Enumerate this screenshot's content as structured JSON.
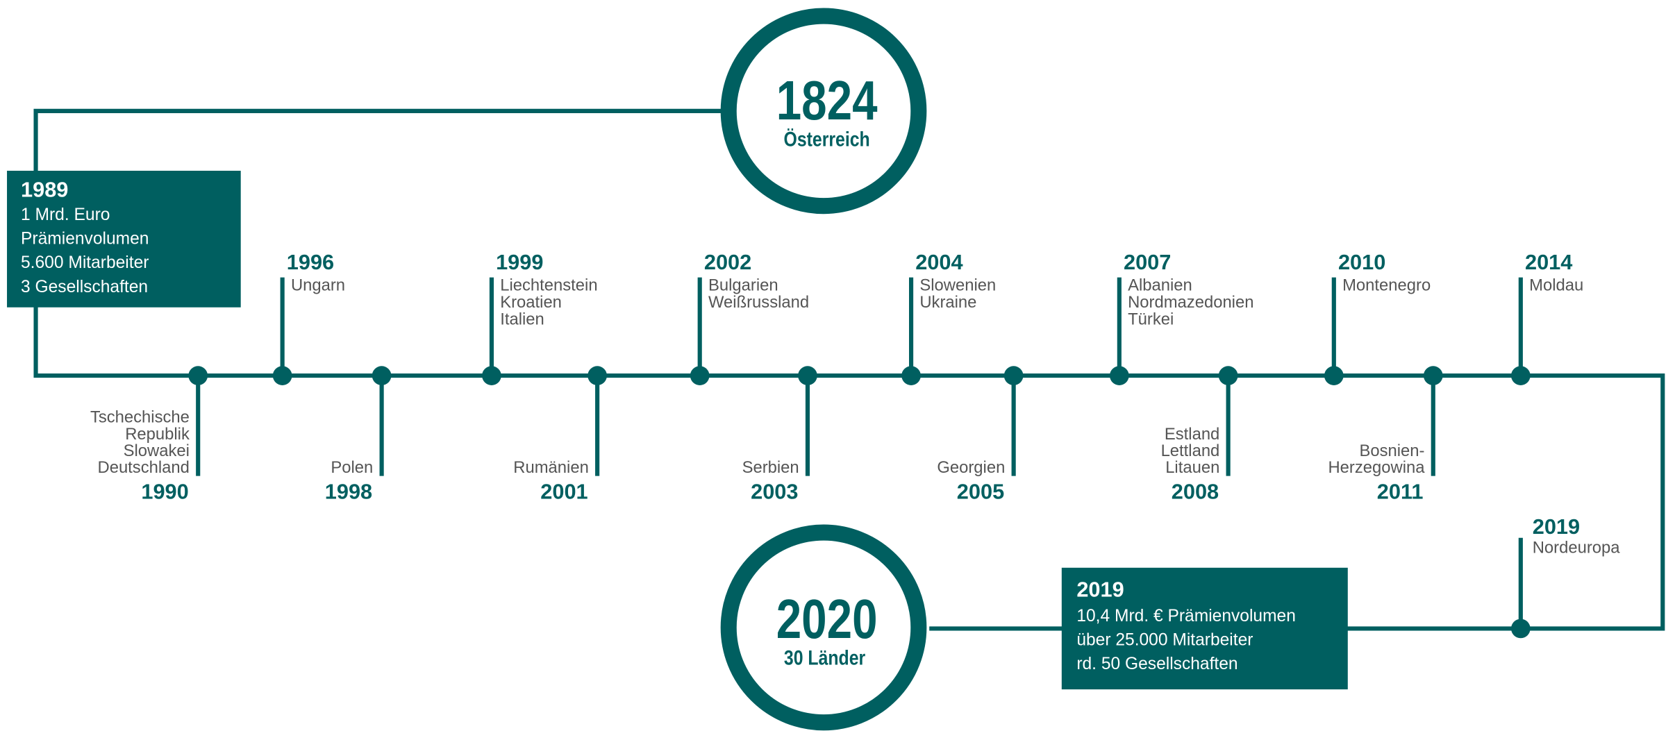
{
  "start": {
    "year": "1824",
    "label": "Österreich"
  },
  "end": {
    "year": "2020",
    "label": "30 Länder"
  },
  "start_box": {
    "year": "1989",
    "lines": [
      "1 Mrd. Euro",
      "Prämienvolumen",
      "5.600 Mitarbeiter",
      "3 Gesellschaften"
    ]
  },
  "end_box": {
    "year": "2019",
    "lines": [
      "10,4 Mrd. € Prämienvolumen",
      "über 25.000 Mitarbeiter",
      "rd. 50 Gesellschaften"
    ]
  },
  "above": [
    {
      "year": "1996",
      "lines": [
        "Ungarn"
      ]
    },
    {
      "year": "1999",
      "lines": [
        "Liechtenstein",
        "Kroatien",
        "Italien"
      ]
    },
    {
      "year": "2002",
      "lines": [
        "Bulgarien",
        "Weißrussland"
      ]
    },
    {
      "year": "2004",
      "lines": [
        "Slowenien",
        "Ukraine"
      ]
    },
    {
      "year": "2007",
      "lines": [
        "Albanien",
        "Nordmazedonien",
        "Türkei"
      ]
    },
    {
      "year": "2010",
      "lines": [
        "Montenegro"
      ]
    },
    {
      "year": "2014",
      "lines": [
        "Moldau"
      ]
    }
  ],
  "below": [
    {
      "year": "1990",
      "lines": [
        "Tschechische",
        "Republik",
        "Slowakei",
        "Deutschland"
      ]
    },
    {
      "year": "1998",
      "lines": [
        "Polen"
      ]
    },
    {
      "year": "2001",
      "lines": [
        "Rumänien"
      ]
    },
    {
      "year": "2003",
      "lines": [
        "Serbien"
      ]
    },
    {
      "year": "2005",
      "lines": [
        "Georgien"
      ]
    },
    {
      "year": "2008",
      "lines": [
        "Estland",
        "Lettland",
        "Litauen"
      ]
    },
    {
      "year": "2011",
      "lines": [
        "Bosnien-",
        "Herzegowina"
      ]
    }
  ],
  "branch": {
    "year": "2019",
    "lines": [
      "Nordeuropa"
    ]
  }
}
